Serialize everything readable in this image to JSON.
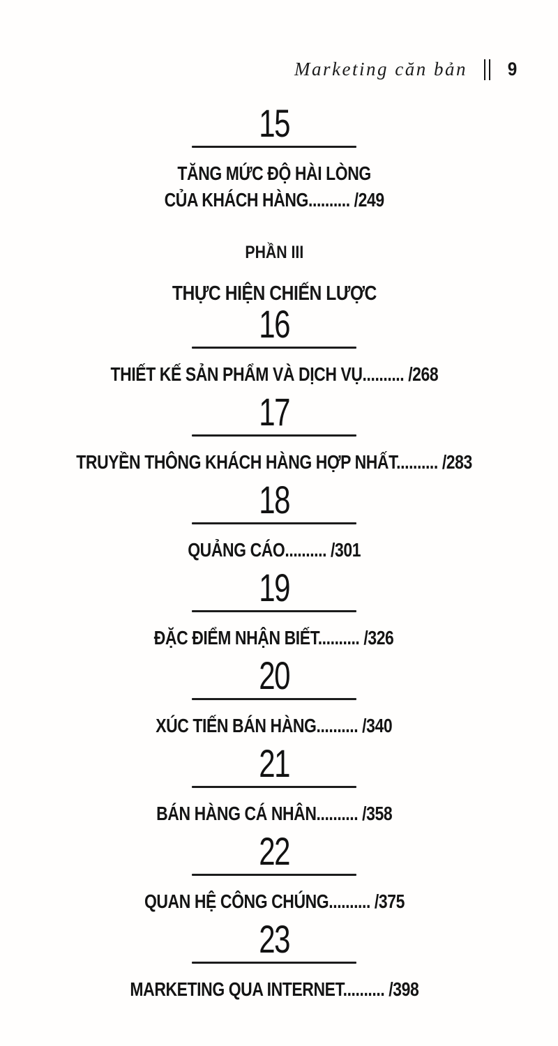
{
  "colors": {
    "paper": "#fffefd",
    "ink": "#161616"
  },
  "header": {
    "book_title": "Marketing căn bản",
    "page_number": "9"
  },
  "toc": {
    "part_divider": {
      "label": "PHẦN III",
      "title": "THỰC HIỆN CHIẾN LƯỢC"
    },
    "chapters": [
      {
        "number": "15",
        "lines": [
          "TĂNG MỨC ĐỘ HÀI LÒNG",
          "CỦA KHÁCH HÀNG.......... /249"
        ],
        "page": "249"
      },
      {
        "number": "16",
        "lines": [
          "THIẾT KẾ SẢN PHẨM VÀ DỊCH VỤ.......... /268"
        ],
        "page": "268"
      },
      {
        "number": "17",
        "lines": [
          "TRUYỀN THÔNG KHÁCH HÀNG HỢP NHẤT.......... /283"
        ],
        "page": "283"
      },
      {
        "number": "18",
        "lines": [
          "QUẢNG CÁO.......... /301"
        ],
        "page": "301"
      },
      {
        "number": "19",
        "lines": [
          "ĐẶC ĐIỂM NHẬN BIẾT.......... /326"
        ],
        "page": "326"
      },
      {
        "number": "20",
        "lines": [
          "XÚC TIẾN BÁN HÀNG.......... /340"
        ],
        "page": "340"
      },
      {
        "number": "21",
        "lines": [
          "BÁN HÀNG CÁ NHÂN.......... /358"
        ],
        "page": "358"
      },
      {
        "number": "22",
        "lines": [
          "QUAN HỆ CÔNG CHÚNG.......... /375"
        ],
        "page": "375"
      },
      {
        "number": "23",
        "lines": [
          "MARKETING QUA INTERNET.......... /398"
        ],
        "page": "398"
      }
    ]
  }
}
